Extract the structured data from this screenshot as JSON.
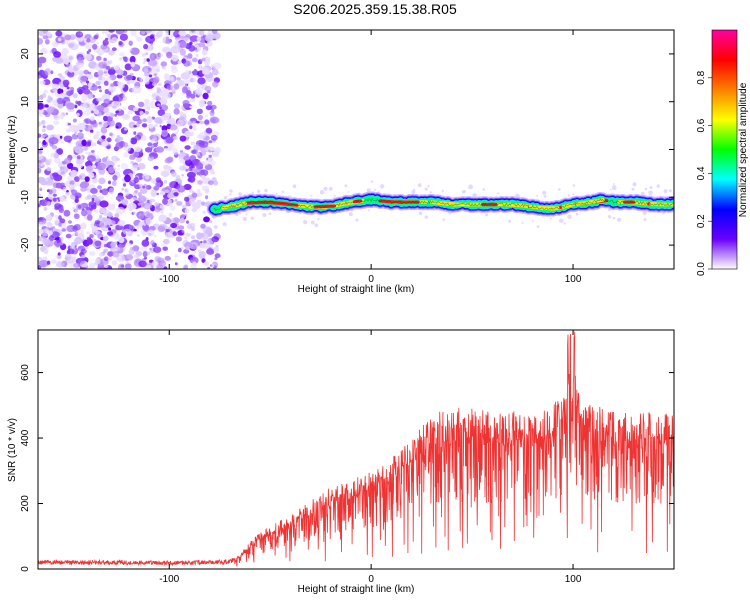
{
  "figure": {
    "title": "S206.2025.359.15.38.R05"
  },
  "chart_data": [
    {
      "type": "heatmap",
      "id": "spectrogram",
      "xlabel": "Height of straight line (km)",
      "ylabel": "Frequency (Hz)",
      "xlim": [
        -165,
        150
      ],
      "ylim": [
        -25,
        25
      ],
      "x_ticks": [
        -100,
        0,
        100
      ],
      "x_tick_labels": [
        "-100",
        "0",
        "100"
      ],
      "y_ticks": [
        -20,
        -10,
        0,
        10,
        20
      ],
      "y_tick_labels": [
        "-20",
        "-10",
        "0",
        "10",
        "20"
      ],
      "noise_region_x": [
        -165,
        -76
      ],
      "signal_band": {
        "x": [
          -78,
          -70,
          -60,
          -50,
          -40,
          -30,
          -20,
          -10,
          0,
          10,
          20,
          30,
          40,
          50,
          60,
          70,
          80,
          90,
          95,
          100,
          110,
          115,
          120,
          130,
          140,
          150
        ],
        "y": [
          -12.5,
          -12,
          -11,
          -11,
          -11.5,
          -12,
          -12,
          -11,
          -10.5,
          -11,
          -11,
          -11,
          -11.5,
          -11.5,
          -11.5,
          -11.5,
          -12,
          -12.5,
          -12,
          -11.5,
          -11,
          -10.5,
          -11,
          -11,
          -11.5,
          -11.5
        ]
      },
      "colorbar": {
        "label": "Normalized spectral amplitude",
        "range": [
          0,
          1
        ],
        "ticks": [
          0.0,
          0.2,
          0.4,
          0.6,
          0.8
        ],
        "tick_labels": [
          "0.0",
          "0.2",
          "0.4",
          "0.6",
          "0.8"
        ],
        "colors": [
          "#ffffff",
          "#6a00ff",
          "#0000ff",
          "#00ffff",
          "#00ff00",
          "#ffff00",
          "#ff8000",
          "#ff0000",
          "#ff00a0"
        ]
      }
    },
    {
      "type": "line",
      "id": "snr",
      "xlabel": "Height of straight line (km)",
      "ylabel": "SNR (10 * v/v)",
      "xlim": [
        -165,
        150
      ],
      "ylim": [
        0,
        730
      ],
      "x_ticks": [
        -100,
        0,
        100
      ],
      "x_tick_labels": [
        "-100",
        "0",
        "100"
      ],
      "y_ticks": [
        0,
        200,
        400,
        600
      ],
      "y_tick_labels": [
        "0",
        "200",
        "400",
        "600"
      ],
      "color": "#ee3333",
      "envelope": {
        "x": [
          -165,
          -130,
          -100,
          -80,
          -70,
          -65,
          -60,
          -50,
          -40,
          -30,
          -20,
          -10,
          0,
          10,
          20,
          25,
          30,
          40,
          60,
          80,
          90,
          95,
          100,
          105,
          120,
          140,
          150
        ],
        "y": [
          20,
          20,
          18,
          20,
          22,
          40,
          80,
          120,
          150,
          190,
          230,
          250,
          270,
          310,
          360,
          400,
          430,
          450,
          440,
          440,
          450,
          520,
          560,
          470,
          440,
          440,
          430
        ]
      }
    }
  ]
}
